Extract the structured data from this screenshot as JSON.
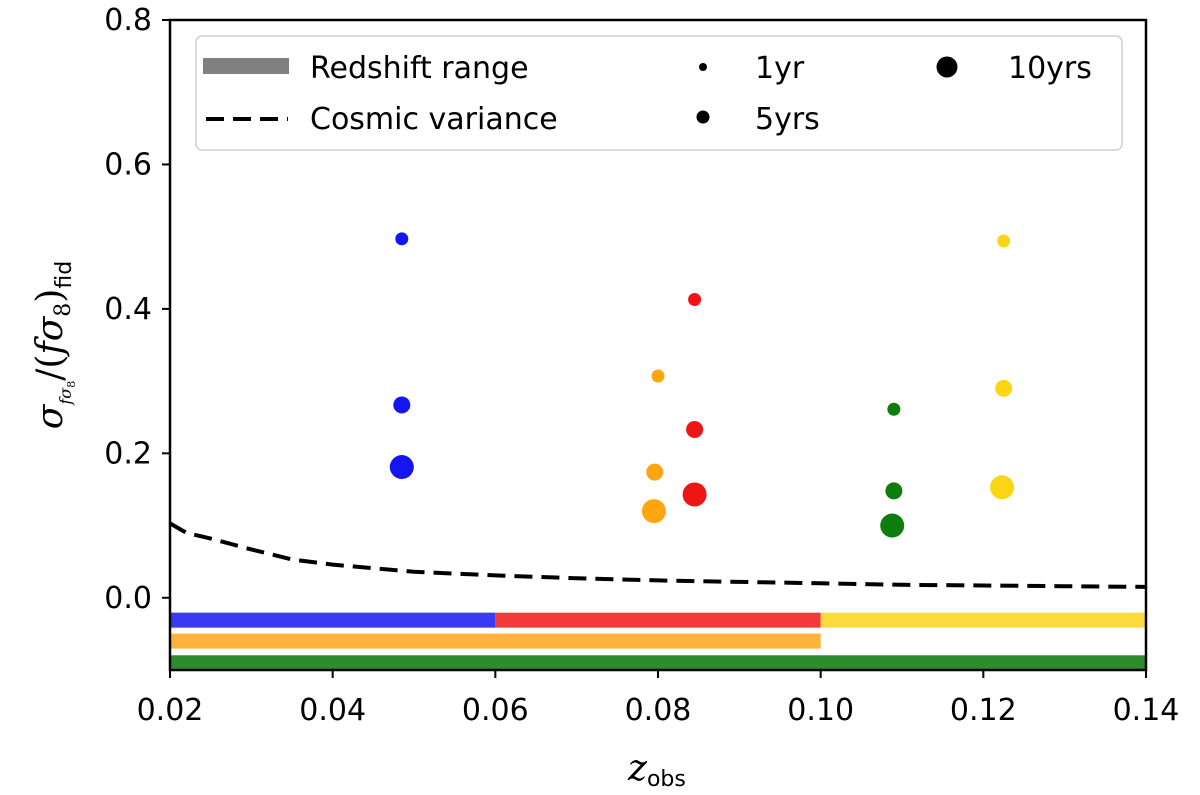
{
  "chart_data": {
    "type": "scatter",
    "title": "",
    "xlabel": {
      "main": "z",
      "sub": "obs"
    },
    "ylabel": {
      "sigma": "σ",
      "f": "f",
      "sigma8_sub": "σ",
      "eight": "8",
      "fid": "fid"
    },
    "xlim": [
      0.02,
      0.14
    ],
    "ylim": [
      -0.1,
      0.8
    ],
    "x_ticks": [
      0.02,
      0.04,
      0.06,
      0.08,
      0.1,
      0.12,
      0.14
    ],
    "x_tick_labels": [
      "0.02",
      "0.04",
      "0.06",
      "0.08",
      "0.10",
      "0.12",
      "0.14"
    ],
    "y_ticks": [
      0.0,
      0.2,
      0.4,
      0.6,
      0.8
    ],
    "y_tick_labels": [
      "0.0",
      "0.2",
      "0.4",
      "0.6",
      "0.8"
    ],
    "legend": {
      "position": "top",
      "entries": [
        {
          "label": "Redshift range",
          "kind": "band",
          "color": "#808080"
        },
        {
          "label": "Cosmic variance",
          "kind": "dashed-line",
          "color": "#000000"
        },
        {
          "label": "1yr",
          "kind": "marker",
          "size": "small",
          "color": "#000000"
        },
        {
          "label": "5yrs",
          "kind": "marker",
          "size": "medium",
          "color": "#000000"
        },
        {
          "label": "10yrs",
          "kind": "marker",
          "size": "large",
          "color": "#000000"
        }
      ]
    },
    "marker_sizes": {
      "1yr": "small",
      "5yrs": "medium",
      "10yrs": "large"
    },
    "series": [
      {
        "name": "blue",
        "color": "#1515f0",
        "points": [
          {
            "x": 0.0485,
            "y": 0.497,
            "duration": "1yr"
          },
          {
            "x": 0.0485,
            "y": 0.267,
            "duration": "5yrs"
          },
          {
            "x": 0.0485,
            "y": 0.181,
            "duration": "10yrs"
          }
        ]
      },
      {
        "name": "orange",
        "color": "#ffa510",
        "points": [
          {
            "x": 0.08,
            "y": 0.307,
            "duration": "1yr"
          },
          {
            "x": 0.0796,
            "y": 0.174,
            "duration": "5yrs"
          },
          {
            "x": 0.0795,
            "y": 0.12,
            "duration": "10yrs"
          }
        ]
      },
      {
        "name": "red",
        "color": "#f01515",
        "points": [
          {
            "x": 0.0845,
            "y": 0.413,
            "duration": "1yr"
          },
          {
            "x": 0.0845,
            "y": 0.233,
            "duration": "5yrs"
          },
          {
            "x": 0.0845,
            "y": 0.143,
            "duration": "10yrs"
          }
        ]
      },
      {
        "name": "green",
        "color": "#0e7d0e",
        "points": [
          {
            "x": 0.109,
            "y": 0.261,
            "duration": "1yr"
          },
          {
            "x": 0.109,
            "y": 0.148,
            "duration": "5yrs"
          },
          {
            "x": 0.1088,
            "y": 0.1,
            "duration": "10yrs"
          }
        ]
      },
      {
        "name": "gold",
        "color": "#fcd615",
        "points": [
          {
            "x": 0.1225,
            "y": 0.494,
            "duration": "1yr"
          },
          {
            "x": 0.1225,
            "y": 0.29,
            "duration": "5yrs"
          },
          {
            "x": 0.1223,
            "y": 0.153,
            "duration": "10yrs"
          }
        ]
      }
    ],
    "redshift_ranges": [
      {
        "name": "blue",
        "color": "#3a3af2",
        "x0": 0.02,
        "x1": 0.06,
        "y": -0.031
      },
      {
        "name": "red",
        "color": "#f23a3a",
        "x0": 0.06,
        "x1": 0.1,
        "y": -0.031
      },
      {
        "name": "gold",
        "color": "#fcdc3a",
        "x0": 0.1,
        "x1": 0.14,
        "y": -0.031
      },
      {
        "name": "orange",
        "color": "#ffb33a",
        "x0": 0.02,
        "x1": 0.1,
        "y": -0.06
      },
      {
        "name": "green",
        "color": "#2e8b2e",
        "x0": 0.02,
        "x1": 0.14,
        "y": -0.09
      }
    ],
    "cosmic_variance": {
      "style": "dashed",
      "color": "#000000",
      "x": [
        0.02,
        0.022,
        0.025,
        0.03,
        0.035,
        0.04,
        0.05,
        0.06,
        0.07,
        0.08,
        0.09,
        0.1,
        0.11,
        0.12,
        0.13,
        0.14
      ],
      "y": [
        0.103,
        0.09,
        0.082,
        0.067,
        0.053,
        0.046,
        0.036,
        0.031,
        0.027,
        0.024,
        0.022,
        0.02,
        0.018,
        0.017,
        0.016,
        0.015
      ]
    }
  }
}
